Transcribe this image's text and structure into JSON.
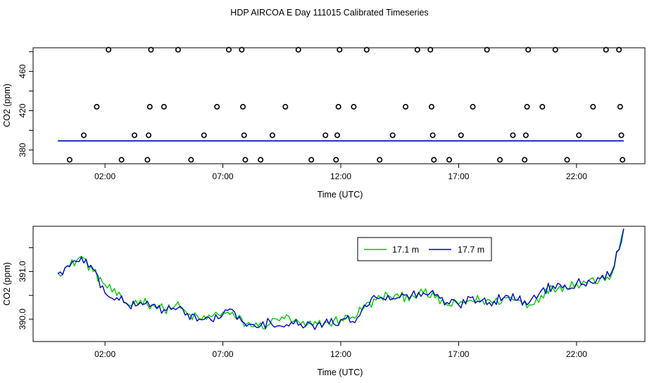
{
  "title": "HDP AIRCOA E  Day 111015  Calibrated Timeseries",
  "chart_data": [
    {
      "type": "scatter",
      "xlabel": "Time (UTC)",
      "ylabel": "CO2 (ppm)",
      "xlim": [
        -1.05,
        24.9
      ],
      "ylim": [
        366,
        484
      ],
      "x_ticks": [
        2,
        7,
        12,
        17,
        22
      ],
      "x_tick_labels": [
        "02:00",
        "07:00",
        "12:00",
        "17:00",
        "22:00"
      ],
      "y_ticks": [
        380,
        420,
        460
      ],
      "grid": false,
      "series": [
        {
          "kind": "points",
          "color": "#000000",
          "points": [
            [
              0.5,
              370
            ],
            [
              1.1,
              395
            ],
            [
              1.65,
              424
            ],
            [
              2.15,
              482
            ],
            [
              2.7,
              370
            ],
            [
              3.25,
              395
            ],
            [
              3.8,
              370
            ],
            [
              3.85,
              395
            ],
            [
              3.9,
              424
            ],
            [
              3.95,
              482
            ],
            [
              4.5,
              424
            ],
            [
              5.1,
              482
            ],
            [
              5.65,
              370
            ],
            [
              6.2,
              395
            ],
            [
              6.75,
              424
            ],
            [
              7.25,
              482
            ],
            [
              7.8,
              482
            ],
            [
              7.85,
              424
            ],
            [
              7.9,
              395
            ],
            [
              7.95,
              370
            ],
            [
              8.6,
              370
            ],
            [
              9.1,
              395
            ],
            [
              9.65,
              424
            ],
            [
              10.2,
              482
            ],
            [
              10.75,
              370
            ],
            [
              11.35,
              395
            ],
            [
              11.8,
              370
            ],
            [
              11.85,
              395
            ],
            [
              11.9,
              424
            ],
            [
              11.95,
              482
            ],
            [
              12.55,
              424
            ],
            [
              13.1,
              482
            ],
            [
              13.65,
              370
            ],
            [
              14.2,
              395
            ],
            [
              14.75,
              424
            ],
            [
              15.25,
              482
            ],
            [
              15.8,
              482
            ],
            [
              15.85,
              424
            ],
            [
              15.9,
              395
            ],
            [
              15.95,
              370
            ],
            [
              16.6,
              370
            ],
            [
              17.1,
              395
            ],
            [
              17.6,
              424
            ],
            [
              18.2,
              482
            ],
            [
              18.75,
              370
            ],
            [
              19.3,
              395
            ],
            [
              19.8,
              370
            ],
            [
              19.85,
              395
            ],
            [
              19.9,
              424
            ],
            [
              19.95,
              482
            ],
            [
              20.55,
              424
            ],
            [
              21.1,
              482
            ],
            [
              21.6,
              370
            ],
            [
              22.1,
              395
            ],
            [
              22.7,
              424
            ],
            [
              23.25,
              482
            ],
            [
              23.8,
              482
            ],
            [
              23.85,
              424
            ],
            [
              23.9,
              395
            ],
            [
              23.95,
              370
            ]
          ]
        },
        {
          "kind": "line",
          "color": "#00cc00",
          "name": "",
          "profile": "bottom"
        },
        {
          "kind": "line",
          "color": "#0000cc",
          "name": "",
          "profile": "bottom"
        }
      ]
    },
    {
      "type": "line",
      "xlabel": "Time (UTC)",
      "ylabel": "CO2 (ppm)",
      "xlim": [
        -1.05,
        24.9
      ],
      "ylim": [
        389.53,
        391.95
      ],
      "x_ticks": [
        2,
        7,
        12,
        17,
        22
      ],
      "x_tick_labels": [
        "02:00",
        "07:00",
        "12:00",
        "17:00",
        "22:00"
      ],
      "y_ticks": [
        390.0,
        391.0
      ],
      "y_tick_labels": [
        "390.0",
        "391.0"
      ],
      "grid": false,
      "legend_position": "top-right",
      "series": [
        {
          "name": "17.1 m",
          "color": "#00cc00",
          "x": [
            0.0,
            0.5,
            1.0,
            1.5,
            2.0,
            2.5,
            3.0,
            3.5,
            4.0,
            4.5,
            5.0,
            5.5,
            6.0,
            6.5,
            7.0,
            7.5,
            8.0,
            8.5,
            9.0,
            9.5,
            10.0,
            10.5,
            11.0,
            11.5,
            12.0,
            12.5,
            13.0,
            13.5,
            14.0,
            14.5,
            15.0,
            15.5,
            16.0,
            16.5,
            17.0,
            17.5,
            18.0,
            18.5,
            19.0,
            19.5,
            20.0,
            20.5,
            21.0,
            21.5,
            22.0,
            22.5,
            23.0,
            23.5,
            24.0
          ],
          "values": [
            390.98,
            391.12,
            391.32,
            391.0,
            390.72,
            390.5,
            390.3,
            390.4,
            390.3,
            390.2,
            390.3,
            390.1,
            390.0,
            390.05,
            390.15,
            390.05,
            389.9,
            389.85,
            389.9,
            390.05,
            389.95,
            389.85,
            389.9,
            389.92,
            390.0,
            390.05,
            390.25,
            390.4,
            390.5,
            390.45,
            390.5,
            390.55,
            390.45,
            390.3,
            390.32,
            390.4,
            390.4,
            390.35,
            390.45,
            390.4,
            390.3,
            390.5,
            390.65,
            390.7,
            390.75,
            390.8,
            390.85,
            390.95,
            391.9
          ]
        },
        {
          "name": "17.7 m",
          "color": "#0000cc",
          "x": [
            0.0,
            0.5,
            1.0,
            1.5,
            2.0,
            2.5,
            3.0,
            3.5,
            4.0,
            4.5,
            5.0,
            5.5,
            6.0,
            6.5,
            7.0,
            7.5,
            8.0,
            8.5,
            9.0,
            9.5,
            10.0,
            10.5,
            11.0,
            11.5,
            12.0,
            12.5,
            13.0,
            13.5,
            14.0,
            14.5,
            15.0,
            15.5,
            16.0,
            16.5,
            17.0,
            17.5,
            18.0,
            18.5,
            19.0,
            19.5,
            20.0,
            20.5,
            21.0,
            21.5,
            22.0,
            22.5,
            23.0,
            23.5,
            24.0
          ],
          "values": [
            390.95,
            391.1,
            391.3,
            391.05,
            390.55,
            390.45,
            390.28,
            390.35,
            390.3,
            390.2,
            390.2,
            390.12,
            390.0,
            389.98,
            390.1,
            390.15,
            389.85,
            389.82,
            389.95,
            389.85,
            389.9,
            389.85,
            389.88,
            389.9,
            389.98,
            389.95,
            390.3,
            390.45,
            390.5,
            390.45,
            390.5,
            390.55,
            390.5,
            390.35,
            390.3,
            390.45,
            390.4,
            390.38,
            390.5,
            390.4,
            390.35,
            390.6,
            390.7,
            390.72,
            390.75,
            390.82,
            390.85,
            391.0,
            391.9
          ]
        }
      ]
    }
  ]
}
